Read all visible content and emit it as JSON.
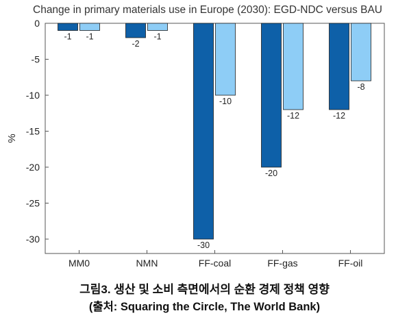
{
  "chart_data": {
    "type": "bar",
    "title": "Change in primary materials use in Europe (2030): EGD-NDC versus BAU",
    "xlabel": "",
    "ylabel": "%",
    "categories": [
      "MM0",
      "NMN",
      "FF-coal",
      "FF-gas",
      "FF-oil"
    ],
    "series": [
      {
        "values": [
          -1,
          -2,
          -30,
          -20,
          -12
        ]
      },
      {
        "values": [
          -1,
          -1,
          -10,
          -12,
          -8
        ]
      }
    ],
    "ylim": [
      -32,
      0
    ],
    "yticks": [
      0,
      -5,
      -10,
      -15,
      -20,
      -25,
      -30
    ],
    "grid": false,
    "legend": "none",
    "colors": [
      "#0e60a8",
      "#8ecdf6"
    ],
    "data_labels": true
  },
  "caption": {
    "line1": "그림3. 생산 및 소비 측면에서의 순환 경제 정책 영향",
    "line2": "(출처: Squaring the Circle, The World Bank)"
  }
}
